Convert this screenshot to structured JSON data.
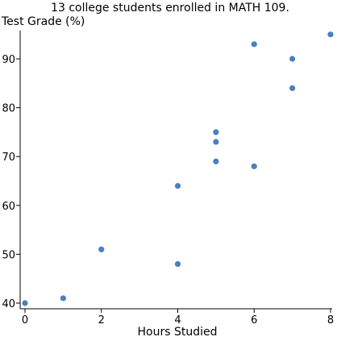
{
  "chart_data": {
    "type": "scatter",
    "title": "13 college students enrolled in MATH 109.",
    "xlabel": "Hours Studied",
    "ylabel": "Test Grade (%)",
    "xlim": [
      0,
      8
    ],
    "ylim": [
      39,
      97
    ],
    "x_ticks": [
      0,
      2,
      4,
      6,
      8
    ],
    "y_ticks": [
      40,
      50,
      60,
      70,
      80,
      90
    ],
    "grid": false,
    "point_color": "#4a7fc1",
    "points": [
      {
        "x": 0,
        "y": 40
      },
      {
        "x": 1,
        "y": 41
      },
      {
        "x": 2,
        "y": 51
      },
      {
        "x": 4,
        "y": 48
      },
      {
        "x": 4,
        "y": 64
      },
      {
        "x": 5,
        "y": 69
      },
      {
        "x": 5,
        "y": 73
      },
      {
        "x": 5,
        "y": 75
      },
      {
        "x": 6,
        "y": 68
      },
      {
        "x": 6,
        "y": 93
      },
      {
        "x": 7,
        "y": 84
      },
      {
        "x": 7,
        "y": 90
      },
      {
        "x": 8,
        "y": 95
      }
    ]
  }
}
